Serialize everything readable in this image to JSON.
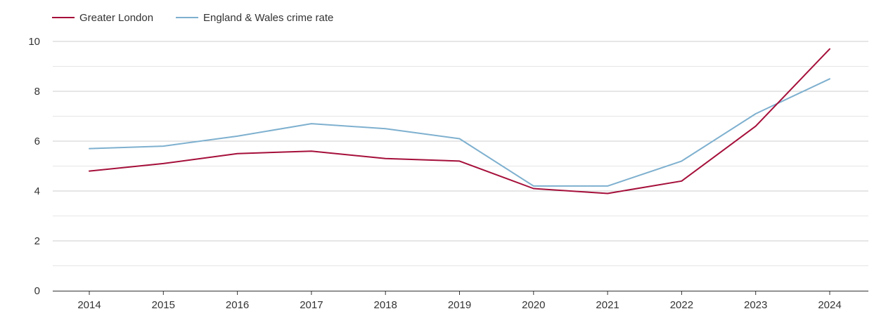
{
  "chart_data": {
    "type": "line",
    "title": "",
    "xlabel": "",
    "ylabel": "",
    "x": [
      "2014",
      "2015",
      "2016",
      "2017",
      "2018",
      "2019",
      "2020",
      "2021",
      "2022",
      "2023",
      "2024"
    ],
    "ylim": [
      0,
      10
    ],
    "y_ticks": [
      "0",
      "2",
      "4",
      "6",
      "8",
      "10"
    ],
    "grid": true,
    "legend_position": "top-left",
    "series": [
      {
        "name": "Greater London",
        "color": "#a50f3a",
        "values": [
          4.8,
          5.1,
          5.5,
          5.6,
          5.3,
          5.2,
          4.1,
          3.9,
          4.4,
          6.6,
          9.7
        ]
      },
      {
        "name": "England & Wales crime rate",
        "color": "#7eb0cf",
        "values": [
          5.7,
          5.8,
          6.2,
          6.7,
          6.5,
          6.1,
          4.2,
          4.2,
          5.2,
          7.1,
          8.5
        ]
      }
    ]
  }
}
